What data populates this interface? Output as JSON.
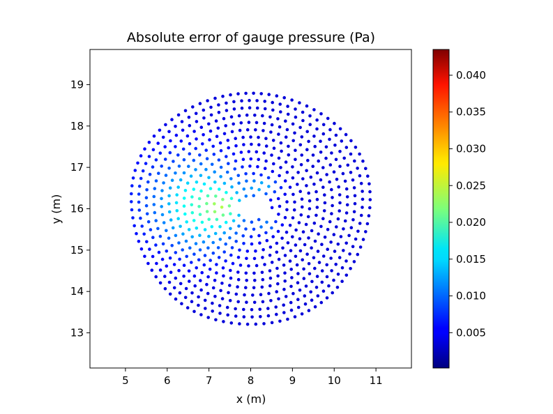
{
  "chart_data": {
    "type": "scatter",
    "title": "Absolute error of gauge pressure (Pa)",
    "xlabel": "x (m)",
    "ylabel": "y (m)",
    "xlim": [
      4.15,
      11.85
    ],
    "ylim": [
      12.15,
      19.85
    ],
    "xticks": [
      5,
      6,
      7,
      8,
      9,
      10,
      11
    ],
    "yticks": [
      13,
      14,
      15,
      16,
      17,
      18,
      19
    ],
    "colormap": "jet",
    "grid": false,
    "colorbar": {
      "min": 0.0002,
      "max": 0.0435,
      "ticks": [
        0.005,
        0.01,
        0.015,
        0.02,
        0.025,
        0.03,
        0.035,
        0.04
      ],
      "tick_labels": [
        "0.005",
        "0.010",
        "0.015",
        "0.020",
        "0.025",
        "0.030",
        "0.035",
        "0.040"
      ]
    },
    "point_cloud": {
      "center": [
        8.0,
        16.0
      ],
      "radius": 2.85,
      "rings": 15,
      "obstacle_vertices": [
        [
          7.55,
          16.05
        ],
        [
          8.4,
          16.35
        ],
        [
          8.5,
          15.75
        ]
      ],
      "peak_value": 0.025,
      "background_value": 0.004
    }
  },
  "colors": {
    "axes": "#000000",
    "background": "#ffffff"
  }
}
